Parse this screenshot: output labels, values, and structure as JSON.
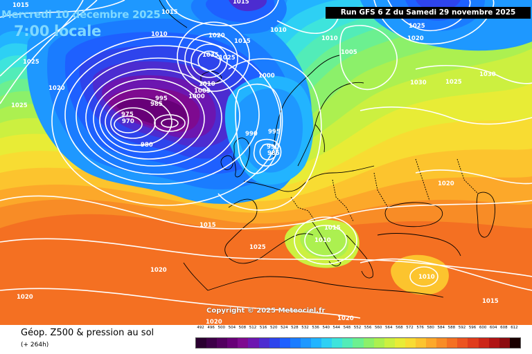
{
  "header": {
    "date": "Mercredi 10 décembre 2025",
    "time": "7:00 locale",
    "run_info": "Run GFS 6 Z du Samedi 29 novembre 2025"
  },
  "copyright": "Copyright © 2025 Meteociel.fr",
  "footer": {
    "title": "Géop. Z500 & pression au sol",
    "subtitle": "(+ 264h)"
  },
  "legend": {
    "values": [
      "492",
      "496",
      "500",
      "504",
      "508",
      "512",
      "516",
      "520",
      "524",
      "528",
      "532",
      "536",
      "540",
      "544",
      "548",
      "552",
      "556",
      "560",
      "564",
      "568",
      "572",
      "576",
      "580",
      "584",
      "588",
      "592",
      "596",
      "600",
      "604",
      "608",
      "612"
    ],
    "colors": [
      "#2a0030",
      "#3d0048",
      "#52005f",
      "#680078",
      "#7e0a90",
      "#6c16b0",
      "#4c2cd0",
      "#2e44ec",
      "#1e60ff",
      "#1a7cff",
      "#1e98ff",
      "#22b4ff",
      "#2ed0f4",
      "#3ee4dc",
      "#52ecb8",
      "#6cf090",
      "#8cf06a",
      "#acf050",
      "#ccf040",
      "#e8ec36",
      "#f8dc32",
      "#fcc42e",
      "#fca82a",
      "#f88c26",
      "#f47022",
      "#ec5420",
      "#e03c1c",
      "#cc2618",
      "#b01414",
      "#8c0c10",
      "#1a0000"
    ]
  },
  "isobars": [
    "1015",
    "1015",
    "1015",
    "1025",
    "1020",
    "1025",
    "1010",
    "1020",
    "1035",
    "1025",
    "1010",
    "1005",
    "995",
    "985",
    "975",
    "970",
    "980",
    "1000",
    "990",
    "995",
    "990",
    "985",
    "1000",
    "1010",
    "1015",
    "1010",
    "1005",
    "1025",
    "1020",
    "1030",
    "1025",
    "1030",
    "1020",
    "1015",
    "1010",
    "1025",
    "1020",
    "1020",
    "1020",
    "1020",
    "1015",
    "1010",
    "1015"
  ],
  "map": {
    "description_colors": {
      "deep_low": "#6a0a8a",
      "trough": "#2a40e8",
      "mid": "#2ed0f4",
      "green": "#8cf06a",
      "yellow": "#e8ec36",
      "orange": "#f88c26"
    }
  }
}
